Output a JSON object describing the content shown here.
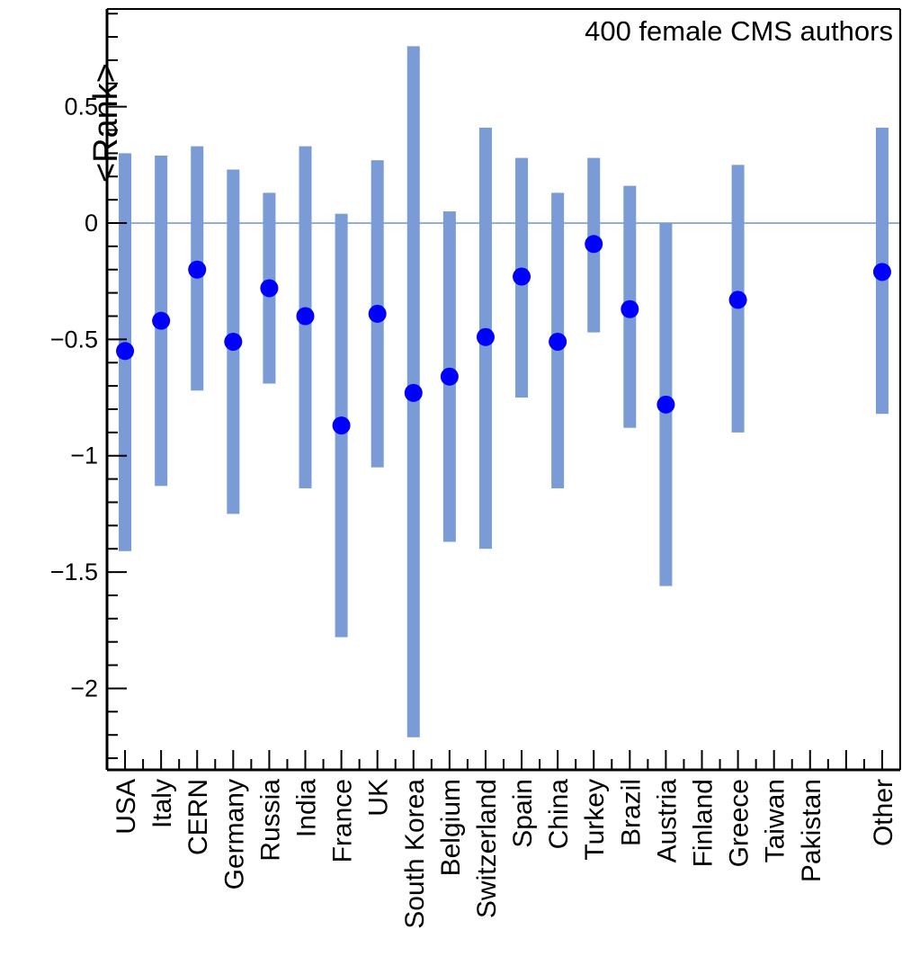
{
  "chart_data": {
    "type": "scatter",
    "ylabel": "<Rank>",
    "xlabel": "",
    "annotation": "400 female CMS authors",
    "ylim": [
      -2.35,
      0.92
    ],
    "yticks": [
      0.5,
      0,
      -0.5,
      -1,
      -1.5,
      -2
    ],
    "ytick_labels": [
      "0.5",
      "0",
      "−0.5",
      "−1",
      "−1.5",
      "−2"
    ],
    "reference_line_y": 0,
    "categories": [
      "USA",
      "Italy",
      "CERN",
      "Germany",
      "Russia",
      "India",
      "France",
      "UK",
      "South Korea",
      "Belgium",
      "Switzerland",
      "Spain",
      "China",
      "Turkey",
      "Brazil",
      "Austria",
      "Finland",
      "Greece",
      "Taiwan",
      "Pakistan",
      "",
      "Other"
    ],
    "values": [
      -0.55,
      -0.42,
      -0.2,
      -0.51,
      -0.28,
      -0.4,
      -0.87,
      -0.39,
      -0.73,
      -0.66,
      -0.49,
      -0.23,
      -0.51,
      -0.09,
      -0.37,
      -0.78,
      null,
      -0.33,
      null,
      null,
      null,
      -0.21
    ],
    "error_low": [
      -1.41,
      -1.13,
      -0.72,
      -1.25,
      -0.69,
      -1.14,
      -1.78,
      -1.05,
      -2.21,
      -1.37,
      -1.4,
      -0.75,
      -1.14,
      -0.47,
      -0.88,
      -1.56,
      null,
      -0.9,
      null,
      null,
      null,
      -0.82
    ],
    "error_high": [
      0.3,
      0.29,
      0.33,
      0.23,
      0.13,
      0.33,
      0.04,
      0.27,
      0.76,
      0.05,
      0.41,
      0.28,
      0.13,
      0.28,
      0.16,
      0.0,
      null,
      0.25,
      null,
      null,
      null,
      0.41
    ],
    "colors": {
      "point": "#0000ff",
      "error_bar": "#7b9bd6",
      "reference_line": "#7b9bd6",
      "axis": "#000000"
    },
    "grid": false
  }
}
